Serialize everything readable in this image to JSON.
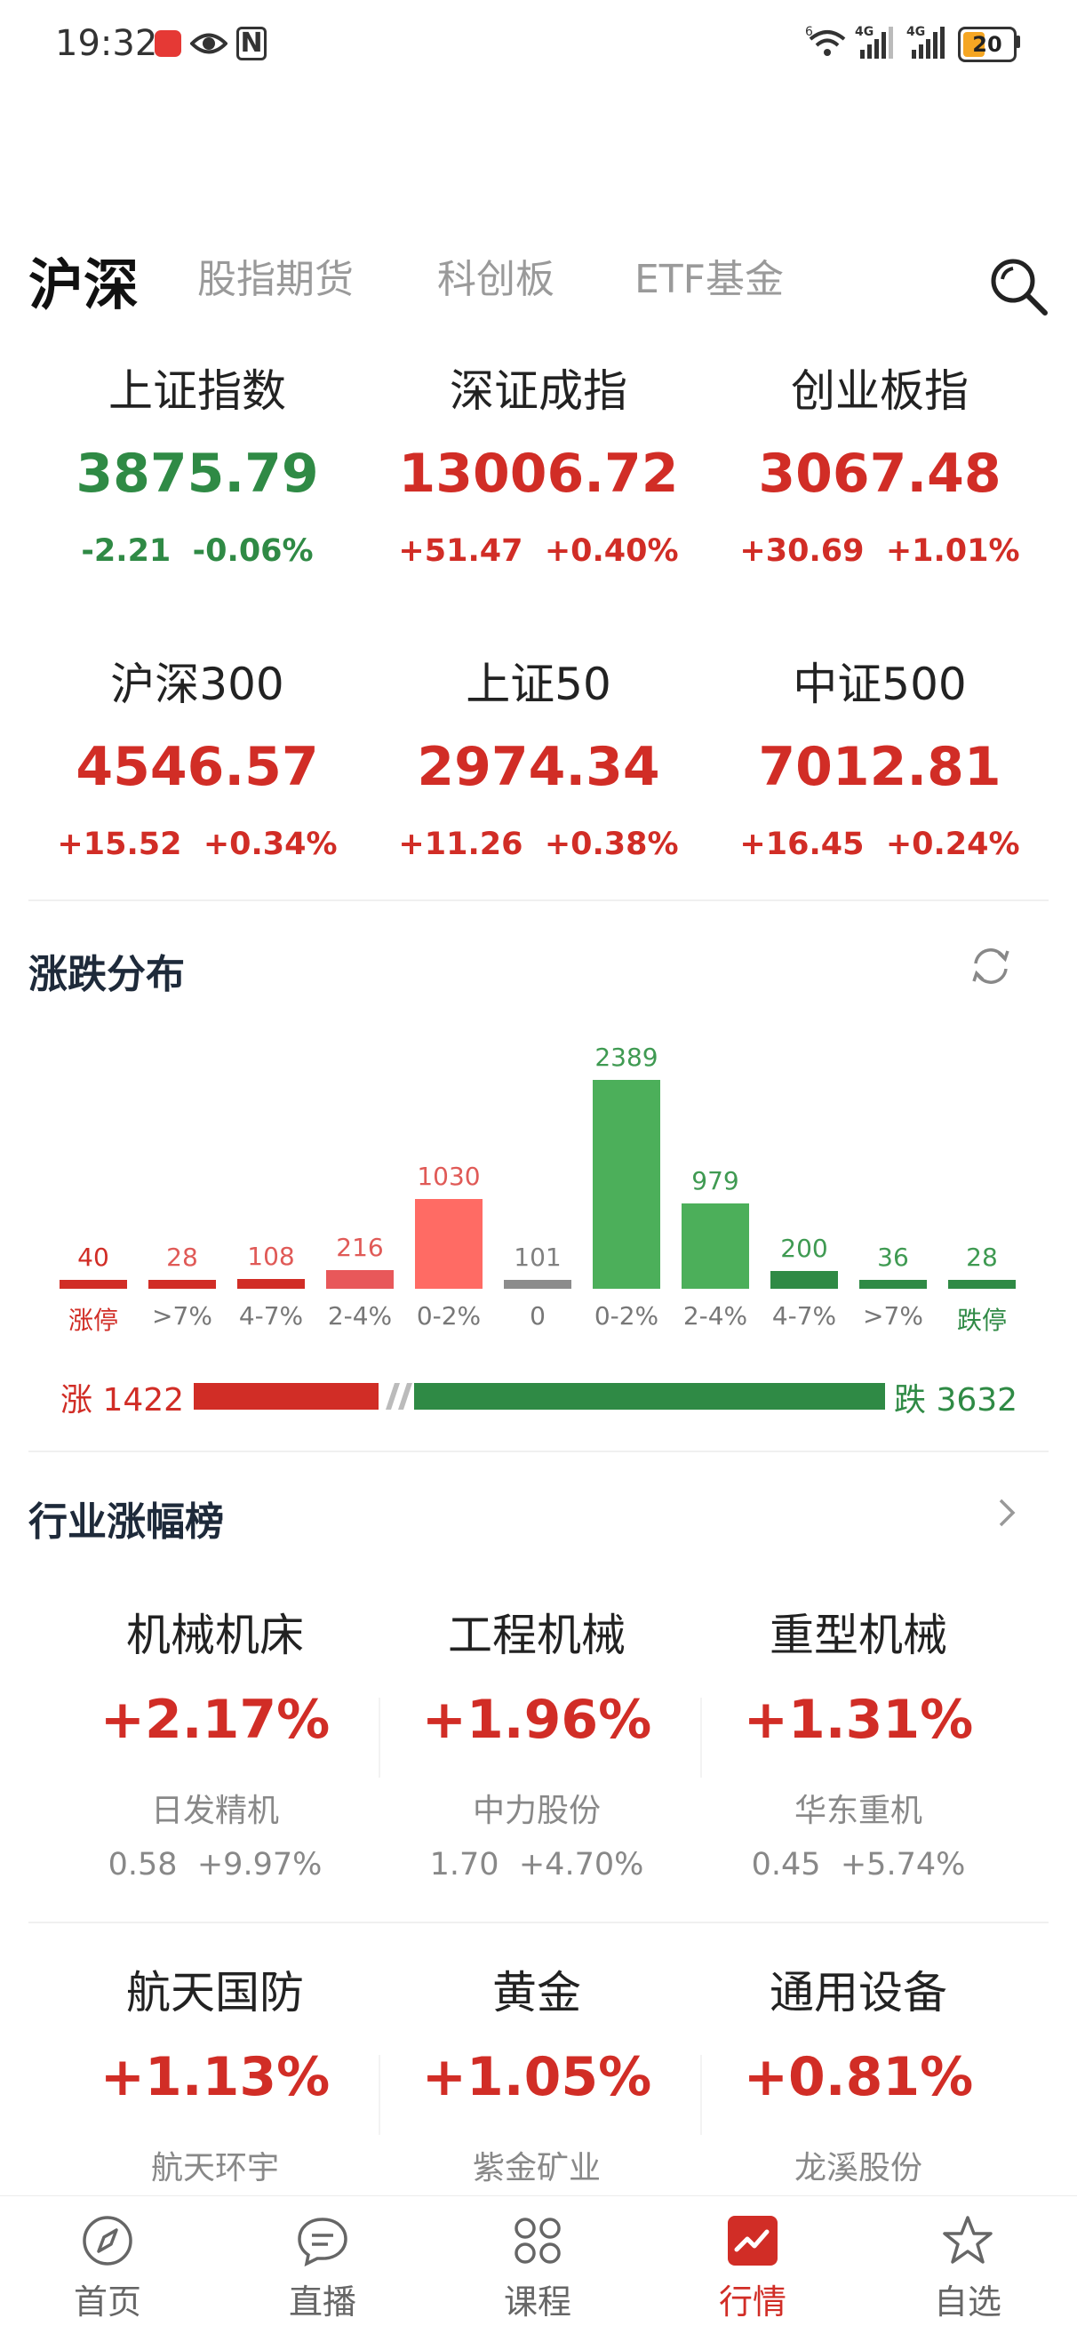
{
  "status_bar": {
    "time": "19:32",
    "battery": "20",
    "network_labels": [
      "4G",
      "4G"
    ],
    "wifi_label": "6"
  },
  "tabs": [
    {
      "label": "沪深",
      "active": true
    },
    {
      "label": "股指期货",
      "active": false
    },
    {
      "label": "科创板",
      "active": false
    },
    {
      "label": "ETF基金",
      "active": false
    }
  ],
  "indices": [
    {
      "name": "上证指数",
      "value": "3875.79",
      "change": "-2.21",
      "pct": "-0.06%",
      "trend": "down"
    },
    {
      "name": "深证成指",
      "value": "13006.72",
      "change": "+51.47",
      "pct": "+0.40%",
      "trend": "up"
    },
    {
      "name": "创业板指",
      "value": "3067.48",
      "change": "+30.69",
      "pct": "+1.01%",
      "trend": "up"
    },
    {
      "name": "沪深300",
      "value": "4546.57",
      "change": "+15.52",
      "pct": "+0.34%",
      "trend": "up"
    },
    {
      "name": "上证50",
      "value": "2974.34",
      "change": "+11.26",
      "pct": "+0.38%",
      "trend": "up"
    },
    {
      "name": "中证500",
      "value": "7012.81",
      "change": "+16.45",
      "pct": "+0.24%",
      "trend": "up"
    }
  ],
  "distribution": {
    "title": "涨跌分布",
    "up_label": "涨 1422",
    "down_label": "跌 3632",
    "up_count": 1422,
    "down_count": 3632
  },
  "chart_data": {
    "type": "bar",
    "categories": [
      "涨停",
      ">7%",
      "4-7%",
      "2-4%",
      "0-2%",
      "0",
      "0-2%",
      "2-4%",
      "4-7%",
      ">7%",
      "跌停"
    ],
    "values": [
      40,
      28,
      108,
      216,
      1030,
      101,
      2389,
      979,
      200,
      36,
      28
    ],
    "data_labels": [
      "40",
      "28",
      "108",
      "216",
      "1030",
      "101",
      "2389",
      "979",
      "200",
      "36",
      "28"
    ],
    "colors": [
      "#d12d26",
      "#d12d26",
      "#d12d26",
      "#e8585a",
      "#ff6b64",
      "#8c8c8c",
      "#4caf5a",
      "#4caf5a",
      "#2f8a45",
      "#2f8a45",
      "#2f8a45"
    ],
    "label_colors": [
      "#d12d26",
      "#e05a57",
      "#e05a57",
      "#e05a57",
      "#e05a57",
      "#808080",
      "#3f9a52",
      "#3f9a52",
      "#3f9a52",
      "#3f9a52",
      "#3f9a52"
    ],
    "bottom_label_colors": [
      "#d12d26",
      "#777777",
      "#777777",
      "#777777",
      "#777777",
      "#777777",
      "#777777",
      "#777777",
      "#777777",
      "#777777",
      "#2f8a45"
    ]
  },
  "industry": {
    "title": "行业涨幅榜",
    "items": [
      {
        "name": "机械机床",
        "pct": "+2.17%",
        "stock": "日发精机",
        "price": "0.58",
        "stock_pct": "+9.97%"
      },
      {
        "name": "工程机械",
        "pct": "+1.96%",
        "stock": "中力股份",
        "price": "1.70",
        "stock_pct": "+4.70%"
      },
      {
        "name": "重型机械",
        "pct": "+1.31%",
        "stock": "华东重机",
        "price": "0.45",
        "stock_pct": "+5.74%"
      },
      {
        "name": "航天国防",
        "pct": "+1.13%",
        "stock": "航天环宇"
      },
      {
        "name": "黄金",
        "pct": "+1.05%",
        "stock": "紫金矿业"
      },
      {
        "name": "通用设备",
        "pct": "+0.81%",
        "stock": "龙溪股份"
      }
    ]
  },
  "bottom_nav": [
    {
      "label": "首页",
      "icon": "compass-icon",
      "active": false
    },
    {
      "label": "直播",
      "icon": "chat-bubble-icon",
      "active": false
    },
    {
      "label": "课程",
      "icon": "grid-icon",
      "active": false
    },
    {
      "label": "行情",
      "icon": "chart-icon",
      "active": true
    },
    {
      "label": "自选",
      "icon": "star-icon",
      "active": false
    }
  ],
  "colors": {
    "up": "#d12d26",
    "down": "#2f8a45",
    "accent": "#d12d26"
  }
}
